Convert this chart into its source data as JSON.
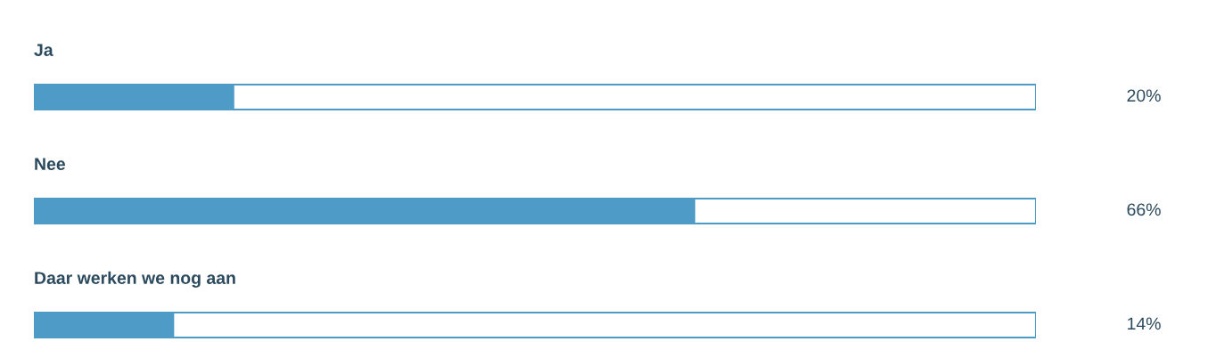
{
  "chart_data": {
    "type": "bar",
    "orientation": "horizontal",
    "categories": [
      "Ja",
      "Nee",
      "Daar werken we nog aan"
    ],
    "values": [
      20,
      66,
      14
    ],
    "value_labels": [
      "20%",
      "66%",
      "14%"
    ],
    "color": "#4f9bc8",
    "xlim": [
      0,
      100
    ]
  }
}
